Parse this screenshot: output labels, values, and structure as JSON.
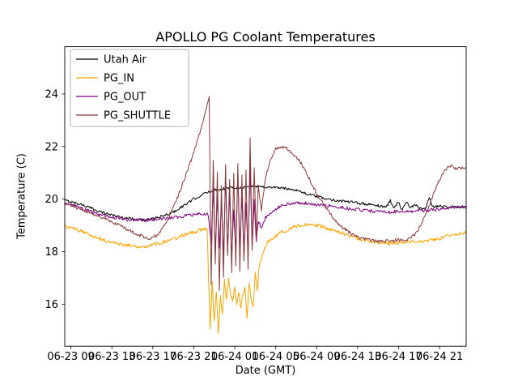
{
  "chart_data": {
    "type": "line",
    "title": "APOLLO PG Coolant Temperatures",
    "xlabel": "Date (GMT)",
    "ylabel": "Temperature (C)",
    "x_units": "hours since 06-23 09:00",
    "xlim": [
      -0.6,
      38.6
    ],
    "ylim": [
      14.4,
      25.8
    ],
    "yticks": [
      16,
      18,
      20,
      22,
      24
    ],
    "xticks": {
      "positions": [
        0,
        4,
        8,
        12,
        16,
        20,
        24,
        28,
        32,
        36
      ],
      "labels": [
        "06-23 09",
        "06-23 13",
        "06-23 17",
        "06-23 21",
        "06-24 01",
        "06-24 05",
        "06-24 09",
        "06-24 13",
        "06-24 17",
        "06-24 21"
      ]
    },
    "grid": false,
    "legend": {
      "position": "upper left",
      "entries": [
        "Utah Air",
        "PG_IN",
        "PG_OUT",
        "PG_SHUTTLE"
      ]
    },
    "colors": {
      "utah_air": "#000000",
      "pg_in": "#ffa500",
      "pg_out": "#800080",
      "pg_shuttle": "#8b3a3a"
    },
    "series": [
      {
        "name": "Utah Air",
        "color": "#000000",
        "noise": 0.05,
        "points": [
          [
            -0.6,
            19.95
          ],
          [
            1,
            19.8
          ],
          [
            2,
            19.65
          ],
          [
            3,
            19.5
          ],
          [
            4,
            19.4
          ],
          [
            5,
            19.3
          ],
          [
            6,
            19.25
          ],
          [
            7,
            19.2
          ],
          [
            8,
            19.25
          ],
          [
            9,
            19.35
          ],
          [
            10,
            19.5
          ],
          [
            11,
            19.75
          ],
          [
            12,
            20.0
          ],
          [
            13,
            20.2
          ],
          [
            14,
            20.35
          ],
          [
            15,
            20.4
          ],
          [
            16,
            20.45
          ],
          [
            17,
            20.45
          ],
          [
            18,
            20.5
          ],
          [
            19,
            20.45
          ],
          [
            20,
            20.45
          ],
          [
            21,
            20.4
          ],
          [
            22,
            20.35
          ],
          [
            23,
            20.2
          ],
          [
            24,
            20.1
          ],
          [
            25,
            20.0
          ],
          [
            26,
            19.95
          ],
          [
            27,
            19.9
          ],
          [
            28,
            19.85
          ],
          [
            29,
            19.8
          ],
          [
            30,
            19.75
          ],
          [
            30.8,
            19.7
          ],
          [
            31.2,
            19.95
          ],
          [
            31.5,
            19.65
          ],
          [
            32.0,
            19.9
          ],
          [
            32.3,
            19.6
          ],
          [
            32.8,
            19.9
          ],
          [
            33.1,
            19.65
          ],
          [
            33.6,
            19.8
          ],
          [
            34.0,
            19.65
          ],
          [
            34.6,
            19.6
          ],
          [
            35.0,
            20.05
          ],
          [
            35.3,
            19.7
          ],
          [
            36,
            19.75
          ],
          [
            37,
            19.7
          ],
          [
            38,
            19.7
          ],
          [
            38.6,
            19.7
          ]
        ]
      },
      {
        "name": "PG_IN",
        "color": "#ffa500",
        "noise": 0.07,
        "points": [
          [
            -0.6,
            18.95
          ],
          [
            0.5,
            18.85
          ],
          [
            1.5,
            18.7
          ],
          [
            2.5,
            18.55
          ],
          [
            3.5,
            18.4
          ],
          [
            4.5,
            18.3
          ],
          [
            5.5,
            18.25
          ],
          [
            6.5,
            18.2
          ],
          [
            7.5,
            18.22
          ],
          [
            8.5,
            18.3
          ],
          [
            9.5,
            18.4
          ],
          [
            10.5,
            18.55
          ],
          [
            11.5,
            18.7
          ],
          [
            12.5,
            18.8
          ],
          [
            13.3,
            18.88
          ],
          [
            13.6,
            15.05
          ],
          [
            13.8,
            16.8
          ],
          [
            14.0,
            15.3
          ],
          [
            14.2,
            16.5
          ],
          [
            14.4,
            14.9
          ],
          [
            14.6,
            16.3
          ],
          [
            14.8,
            15.6
          ],
          [
            15.0,
            16.9
          ],
          [
            15.2,
            16.2
          ],
          [
            15.4,
            17.0
          ],
          [
            15.6,
            16.4
          ],
          [
            15.8,
            16.1
          ],
          [
            16.0,
            16.6
          ],
          [
            16.2,
            16.0
          ],
          [
            16.4,
            16.5
          ],
          [
            16.6,
            15.8
          ],
          [
            16.8,
            16.4
          ],
          [
            17.0,
            16.6
          ],
          [
            17.2,
            15.5
          ],
          [
            17.4,
            16.8
          ],
          [
            17.6,
            16.2
          ],
          [
            17.8,
            15.9
          ],
          [
            18.0,
            17.2
          ],
          [
            18.2,
            16.5
          ],
          [
            18.4,
            17.5
          ],
          [
            18.7,
            17.9
          ],
          [
            19.2,
            18.35
          ],
          [
            19.8,
            18.55
          ],
          [
            20.5,
            18.72
          ],
          [
            21.5,
            18.9
          ],
          [
            22.5,
            19.0
          ],
          [
            23.5,
            19.02
          ],
          [
            24.5,
            18.95
          ],
          [
            25.5,
            18.82
          ],
          [
            26.5,
            18.68
          ],
          [
            27.5,
            18.55
          ],
          [
            28.5,
            18.45
          ],
          [
            29.5,
            18.38
          ],
          [
            30.5,
            18.32
          ],
          [
            31.5,
            18.32
          ],
          [
            32.5,
            18.36
          ],
          [
            33.5,
            18.4
          ],
          [
            34.5,
            18.42
          ],
          [
            35.5,
            18.45
          ],
          [
            36.5,
            18.55
          ],
          [
            37.3,
            18.65
          ],
          [
            38,
            18.7
          ],
          [
            38.6,
            18.72
          ]
        ]
      },
      {
        "name": "PG_OUT",
        "color": "#800080",
        "noise": 0.06,
        "points": [
          [
            -0.6,
            19.85
          ],
          [
            0.5,
            19.72
          ],
          [
            1.5,
            19.58
          ],
          [
            2.5,
            19.45
          ],
          [
            3.5,
            19.35
          ],
          [
            4.5,
            19.28
          ],
          [
            5.5,
            19.22
          ],
          [
            6.5,
            19.2
          ],
          [
            7.5,
            19.2
          ],
          [
            8.5,
            19.22
          ],
          [
            9.5,
            19.28
          ],
          [
            10.5,
            19.32
          ],
          [
            11.5,
            19.38
          ],
          [
            12.5,
            19.42
          ],
          [
            13.4,
            19.42
          ],
          [
            13.7,
            18.3
          ],
          [
            13.9,
            20.5
          ],
          [
            14.1,
            17.9
          ],
          [
            14.3,
            20.2
          ],
          [
            14.5,
            18.1
          ],
          [
            14.7,
            19.9
          ],
          [
            14.9,
            17.8
          ],
          [
            15.1,
            20.8
          ],
          [
            15.3,
            18.0
          ],
          [
            15.5,
            20.3
          ],
          [
            15.7,
            17.8
          ],
          [
            15.9,
            19.6
          ],
          [
            16.1,
            17.9
          ],
          [
            16.3,
            21.0
          ],
          [
            16.5,
            18.2
          ],
          [
            16.7,
            20.1
          ],
          [
            16.9,
            17.8
          ],
          [
            17.1,
            19.8
          ],
          [
            17.3,
            17.9
          ],
          [
            17.5,
            21.2
          ],
          [
            17.7,
            18.1
          ],
          [
            17.9,
            20.0
          ],
          [
            18.1,
            18.4
          ],
          [
            18.3,
            19.2
          ],
          [
            18.6,
            18.9
          ],
          [
            19.0,
            19.3
          ],
          [
            19.6,
            19.52
          ],
          [
            20.2,
            19.68
          ],
          [
            21.0,
            19.8
          ],
          [
            22.0,
            19.85
          ],
          [
            23.0,
            19.85
          ],
          [
            24.0,
            19.8
          ],
          [
            25.0,
            19.75
          ],
          [
            26.0,
            19.7
          ],
          [
            27.0,
            19.65
          ],
          [
            28.0,
            19.6
          ],
          [
            29.0,
            19.55
          ],
          [
            30.0,
            19.52
          ],
          [
            31.0,
            19.5
          ],
          [
            32.0,
            19.54
          ],
          [
            33.0,
            19.52
          ],
          [
            34.0,
            19.55
          ],
          [
            35.0,
            19.58
          ],
          [
            36.0,
            19.62
          ],
          [
            37.0,
            19.68
          ],
          [
            38,
            19.7
          ],
          [
            38.6,
            19.7
          ]
        ]
      },
      {
        "name": "PG_SHUTTLE",
        "color": "#8b3a3a",
        "noise": 0.06,
        "points": [
          [
            -0.6,
            19.8
          ],
          [
            0.5,
            19.68
          ],
          [
            1.5,
            19.52
          ],
          [
            2.5,
            19.38
          ],
          [
            3.5,
            19.22
          ],
          [
            4.5,
            19.05
          ],
          [
            5.5,
            18.85
          ],
          [
            6.5,
            18.65
          ],
          [
            7.2,
            18.55
          ],
          [
            7.8,
            18.5
          ],
          [
            8.3,
            18.6
          ],
          [
            8.8,
            18.8
          ],
          [
            9.3,
            19.1
          ],
          [
            9.8,
            19.5
          ],
          [
            10.3,
            19.95
          ],
          [
            10.8,
            20.45
          ],
          [
            11.3,
            21.0
          ],
          [
            11.8,
            21.55
          ],
          [
            12.3,
            22.15
          ],
          [
            12.8,
            22.8
          ],
          [
            13.2,
            23.4
          ],
          [
            13.5,
            23.9
          ],
          [
            13.7,
            16.8
          ],
          [
            13.9,
            21.5
          ],
          [
            14.1,
            17.5
          ],
          [
            14.3,
            21.0
          ],
          [
            14.5,
            16.5
          ],
          [
            14.7,
            20.5
          ],
          [
            14.9,
            17.0
          ],
          [
            15.1,
            21.3
          ],
          [
            15.3,
            17.8
          ],
          [
            15.5,
            20.8
          ],
          [
            15.7,
            17.2
          ],
          [
            15.9,
            21.0
          ],
          [
            16.1,
            17.5
          ],
          [
            16.3,
            21.4
          ],
          [
            16.5,
            17.3
          ],
          [
            16.7,
            20.9
          ],
          [
            16.9,
            17.6
          ],
          [
            17.1,
            21.1
          ],
          [
            17.3,
            17.4
          ],
          [
            17.5,
            22.3
          ],
          [
            17.7,
            18.0
          ],
          [
            17.9,
            21.2
          ],
          [
            18.1,
            18.5
          ],
          [
            18.3,
            20.5
          ],
          [
            18.6,
            19.6
          ],
          [
            19.0,
            20.8
          ],
          [
            19.5,
            21.5
          ],
          [
            20.0,
            21.9
          ],
          [
            20.5,
            22.0
          ],
          [
            21.0,
            21.95
          ],
          [
            21.5,
            21.8
          ],
          [
            22.0,
            21.6
          ],
          [
            22.5,
            21.35
          ],
          [
            23.0,
            21.0
          ],
          [
            23.5,
            20.6
          ],
          [
            24.0,
            20.2
          ],
          [
            24.5,
            19.9
          ],
          [
            25.0,
            19.6
          ],
          [
            25.5,
            19.35
          ],
          [
            26.0,
            19.1
          ],
          [
            26.5,
            18.92
          ],
          [
            27.0,
            18.78
          ],
          [
            27.5,
            18.65
          ],
          [
            28.0,
            18.55
          ],
          [
            29.0,
            18.45
          ],
          [
            30.0,
            18.38
          ],
          [
            31.0,
            18.4
          ],
          [
            32.0,
            18.45
          ],
          [
            32.7,
            18.42
          ],
          [
            33.3,
            18.55
          ],
          [
            33.8,
            18.75
          ],
          [
            34.3,
            19.1
          ],
          [
            34.8,
            19.55
          ],
          [
            35.3,
            20.1
          ],
          [
            35.8,
            20.6
          ],
          [
            36.3,
            20.95
          ],
          [
            36.8,
            21.2
          ],
          [
            37.2,
            21.3
          ],
          [
            37.6,
            21.15
          ],
          [
            38,
            21.2
          ],
          [
            38.6,
            21.2
          ]
        ]
      }
    ]
  }
}
